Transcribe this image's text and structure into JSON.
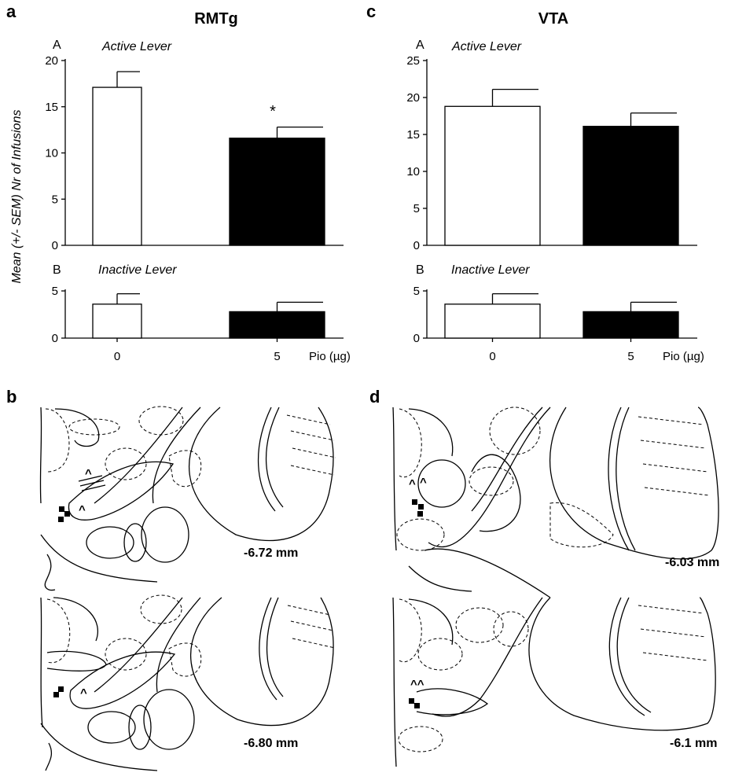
{
  "figure": {
    "panels": {
      "a": "a",
      "b": "b",
      "c": "c",
      "d": "d"
    },
    "regions": [
      "RMTg",
      "VTA"
    ],
    "y_axis_label": "Mean (+/- SEM) Nr of Infusions",
    "x_axis_label": "Pio (µg)",
    "significance_marker": "*",
    "sections": {
      "b_top": "-6.72 mm",
      "b_bottom": "-6.80 mm",
      "d_top": "-6.03 mm",
      "d_bottom": "-6.1 mm"
    },
    "bar_colors": {
      "0": "#ffffff",
      "5": "#000000"
    }
  },
  "chart_data": [
    {
      "type": "bar",
      "panel": "a",
      "subpanel": "A",
      "title": "RMTg",
      "subtitle": "Active Lever",
      "categories": [
        "0",
        "5"
      ],
      "values": [
        17.1,
        11.6
      ],
      "errors": [
        1.7,
        1.2
      ],
      "ylim": [
        0,
        20
      ],
      "yticks": [
        0,
        5,
        10,
        15,
        20
      ],
      "significant": [
        false,
        true
      ]
    },
    {
      "type": "bar",
      "panel": "a",
      "subpanel": "B",
      "subtitle": "Inactive Lever",
      "categories": [
        "0",
        "5"
      ],
      "values": [
        3.6,
        2.8
      ],
      "errors": [
        1.1,
        1.0
      ],
      "ylim": [
        0,
        5
      ],
      "yticks": [
        0,
        5
      ]
    },
    {
      "type": "bar",
      "panel": "c",
      "subpanel": "A",
      "title": "VTA",
      "subtitle": "Active Lever",
      "categories": [
        "0",
        "5"
      ],
      "values": [
        18.8,
        16.1
      ],
      "errors": [
        2.3,
        1.8
      ],
      "ylim": [
        0,
        25
      ],
      "yticks": [
        0,
        5,
        10,
        15,
        20,
        25
      ]
    },
    {
      "type": "bar",
      "panel": "c",
      "subpanel": "B",
      "subtitle": "Inactive Lever",
      "categories": [
        "0",
        "5"
      ],
      "values": [
        3.6,
        2.8
      ],
      "errors": [
        1.1,
        1.0
      ],
      "ylim": [
        0,
        5
      ],
      "yticks": [
        0,
        5
      ]
    }
  ]
}
